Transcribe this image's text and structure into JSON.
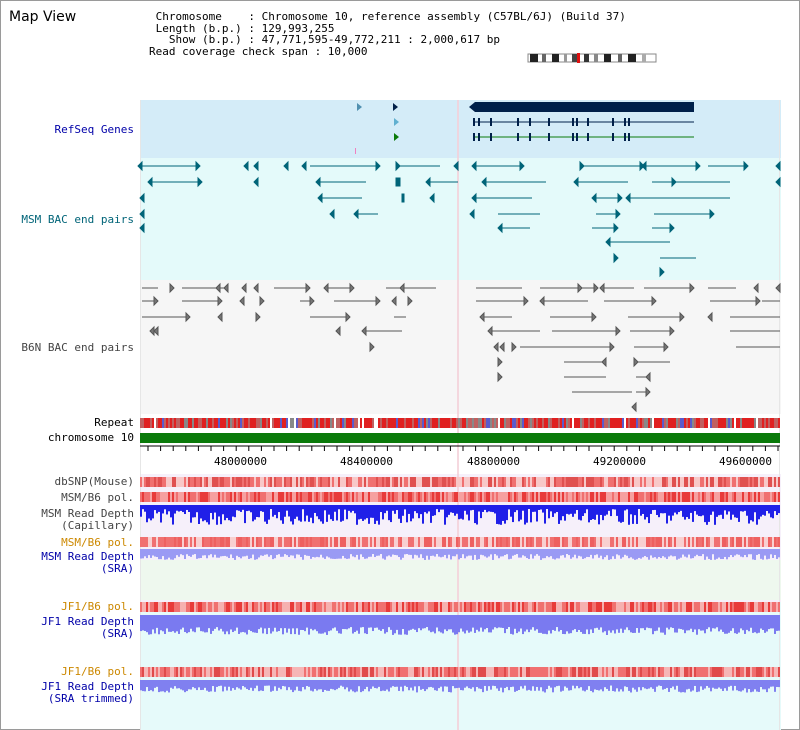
{
  "app": {
    "title": "Map View"
  },
  "info": {
    "chromosome_key": " Chromosome",
    "chromosome_value": ": Chromosome 10, reference assembly (C57BL/6J) (Build 37)",
    "length_key": " Length (b.p.)",
    "length_value": ": 129,993,255",
    "show_key": "   Show (b.p.)",
    "show_value": ": 47,771,595-49,772,211 : 2,000,617 bp",
    "coverage_text": "Read coverage check span : 10,000"
  },
  "tracks": {
    "refseq": "RefSeq Genes",
    "msm_bac": "MSM BAC end pairs",
    "b6n_bac": "B6N BAC end pairs",
    "repeat": "Repeat",
    "chromosome": "chromosome 10",
    "dbsnp": "dbSNP(Mouse)",
    "msm_b6_pol_1": "MSM/B6 pol.",
    "msm_read_depth_cap_1": "MSM Read Depth",
    "msm_read_depth_cap_2": "(Capillary)",
    "msm_b6_pol_2": "MSM/B6 pol.",
    "msm_read_depth_sra_1": "MSM Read Depth",
    "msm_read_depth_sra_2": "(SRA)",
    "jf1_b6_pol_1": "JF1/B6 pol.",
    "jf1_read_depth_sra_1": "JF1 Read Depth",
    "jf1_read_depth_sra_2": "(SRA)",
    "jf1_b6_pol_2": "JF1/B6 pol.",
    "jf1_read_depth_trim_1": "JF1 Read Depth",
    "jf1_read_depth_trim_2": "(SRA trimmed)"
  },
  "axis": {
    "ticks": [
      "48000000",
      "48400000",
      "48800000",
      "49200000",
      "49600000"
    ]
  },
  "colors": {
    "refseq_bg": "#d4ecf8",
    "bac_bg": "#e4fafa",
    "gene_dark": "#00204a",
    "teal": "#006478",
    "chromosome": "#0a7a0a",
    "depth_blue": "#2020e8",
    "depth_light": "#7a7af0",
    "pol_red": "#e83a3a",
    "pol_light": "#f6b6b6"
  }
}
